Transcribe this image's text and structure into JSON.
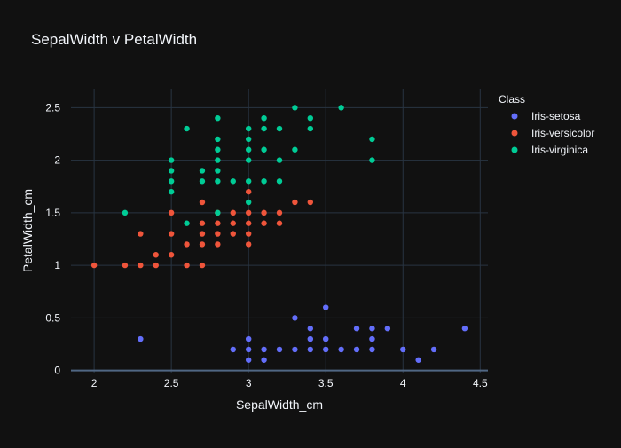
{
  "chart_data": {
    "type": "scatter",
    "title": "SepalWidth v PetalWidth",
    "xlabel": "SepalWidth_cm",
    "ylabel": "PetalWidth_cm",
    "xlim": [
      1.85,
      4.55
    ],
    "ylim": [
      -0.02,
      2.68
    ],
    "xticks": [
      2,
      2.5,
      3,
      3.5,
      4,
      4.5
    ],
    "xtick_labels": [
      "2",
      "2.5",
      "3",
      "3.5",
      "4",
      "4.5"
    ],
    "yticks": [
      0,
      0.5,
      1,
      1.5,
      2,
      2.5
    ],
    "ytick_labels": [
      "0",
      "0.5",
      "1",
      "1.5",
      "2",
      "2.5"
    ],
    "grid": true,
    "legend": {
      "title": "Class",
      "placement": "right"
    },
    "series": [
      {
        "name": "Iris-setosa",
        "color": "#636efa",
        "points": [
          [
            2.3,
            0.3
          ],
          [
            2.9,
            0.2
          ],
          [
            3.0,
            0.2
          ],
          [
            3.0,
            0.1
          ],
          [
            3.0,
            0.3
          ],
          [
            3.1,
            0.2
          ],
          [
            3.1,
            0.1
          ],
          [
            3.2,
            0.2
          ],
          [
            3.3,
            0.2
          ],
          [
            3.3,
            0.5
          ],
          [
            3.4,
            0.2
          ],
          [
            3.4,
            0.3
          ],
          [
            3.4,
            0.4
          ],
          [
            3.5,
            0.2
          ],
          [
            3.5,
            0.3
          ],
          [
            3.5,
            0.6
          ],
          [
            3.6,
            0.2
          ],
          [
            3.7,
            0.2
          ],
          [
            3.7,
            0.4
          ],
          [
            3.8,
            0.2
          ],
          [
            3.8,
            0.3
          ],
          [
            3.8,
            0.4
          ],
          [
            3.9,
            0.4
          ],
          [
            4.0,
            0.2
          ],
          [
            4.1,
            0.1
          ],
          [
            4.2,
            0.2
          ],
          [
            4.4,
            0.4
          ]
        ]
      },
      {
        "name": "Iris-versicolor",
        "color": "#ef553b",
        "points": [
          [
            2.0,
            1.0
          ],
          [
            2.2,
            1.0
          ],
          [
            2.3,
            1.0
          ],
          [
            2.3,
            1.3
          ],
          [
            2.4,
            1.0
          ],
          [
            2.4,
            1.1
          ],
          [
            2.5,
            1.1
          ],
          [
            2.5,
            1.3
          ],
          [
            2.5,
            1.5
          ],
          [
            2.6,
            1.0
          ],
          [
            2.6,
            1.2
          ],
          [
            2.7,
            1.0
          ],
          [
            2.7,
            1.2
          ],
          [
            2.7,
            1.3
          ],
          [
            2.7,
            1.4
          ],
          [
            2.7,
            1.6
          ],
          [
            2.8,
            1.2
          ],
          [
            2.8,
            1.3
          ],
          [
            2.8,
            1.4
          ],
          [
            2.8,
            1.5
          ],
          [
            2.9,
            1.3
          ],
          [
            2.9,
            1.4
          ],
          [
            2.9,
            1.5
          ],
          [
            3.0,
            1.2
          ],
          [
            3.0,
            1.3
          ],
          [
            3.0,
            1.4
          ],
          [
            3.0,
            1.5
          ],
          [
            3.0,
            1.7
          ],
          [
            3.1,
            1.4
          ],
          [
            3.1,
            1.5
          ],
          [
            3.2,
            1.4
          ],
          [
            3.2,
            1.5
          ],
          [
            3.3,
            1.6
          ],
          [
            3.4,
            1.6
          ]
        ]
      },
      {
        "name": "Iris-virginica",
        "color": "#00cc96",
        "points": [
          [
            2.2,
            1.5
          ],
          [
            2.5,
            1.7
          ],
          [
            2.5,
            1.8
          ],
          [
            2.5,
            1.9
          ],
          [
            2.5,
            2.0
          ],
          [
            2.6,
            1.4
          ],
          [
            2.6,
            2.3
          ],
          [
            2.7,
            1.8
          ],
          [
            2.7,
            1.9
          ],
          [
            2.8,
            1.5
          ],
          [
            2.8,
            1.8
          ],
          [
            2.8,
            1.9
          ],
          [
            2.8,
            2.0
          ],
          [
            2.8,
            2.1
          ],
          [
            2.8,
            2.2
          ],
          [
            2.8,
            2.4
          ],
          [
            2.9,
            1.8
          ],
          [
            3.0,
            1.6
          ],
          [
            3.0,
            1.8
          ],
          [
            3.0,
            2.0
          ],
          [
            3.0,
            2.1
          ],
          [
            3.0,
            2.2
          ],
          [
            3.0,
            2.3
          ],
          [
            3.1,
            1.8
          ],
          [
            3.1,
            2.1
          ],
          [
            3.1,
            2.3
          ],
          [
            3.1,
            2.4
          ],
          [
            3.2,
            1.8
          ],
          [
            3.2,
            2.0
          ],
          [
            3.2,
            2.3
          ],
          [
            3.3,
            2.1
          ],
          [
            3.3,
            2.5
          ],
          [
            3.4,
            2.3
          ],
          [
            3.4,
            2.4
          ],
          [
            3.6,
            2.5
          ],
          [
            3.8,
            2.0
          ],
          [
            3.8,
            2.2
          ]
        ]
      }
    ]
  }
}
